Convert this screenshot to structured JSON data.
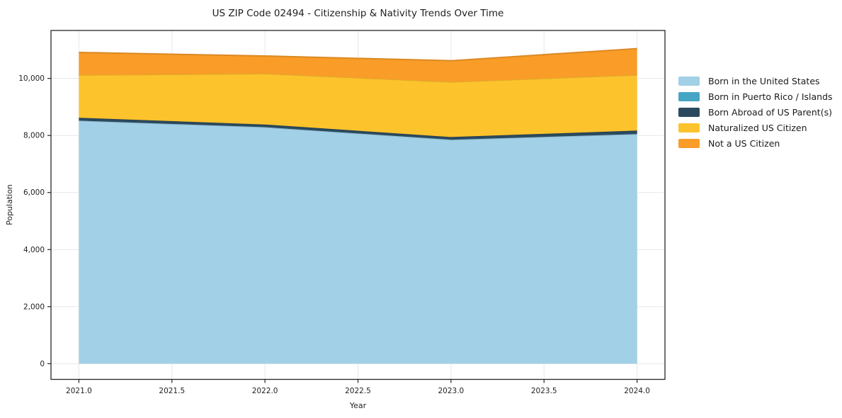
{
  "chart_data": {
    "type": "area",
    "stacked": true,
    "title": "US ZIP Code 02494 - Citizenship & Nativity Trends Over Time",
    "xlabel": "Year",
    "ylabel": "Population",
    "x": [
      2021,
      2022,
      2023,
      2024
    ],
    "series": [
      {
        "name": "Born in the United States",
        "color": "#A1D0E7",
        "values": [
          8520,
          8290,
          7850,
          8050
        ]
      },
      {
        "name": "Born in Puerto Rico / Islands",
        "color": "#46A5C4",
        "values": [
          0,
          0,
          0,
          0
        ]
      },
      {
        "name": "Born Abroad of US Parent(s)",
        "color": "#2B4A5E",
        "values": [
          100,
          95,
          95,
          120
        ]
      },
      {
        "name": "Naturalized US Citizen",
        "color": "#FDC32D",
        "values": [
          1500,
          1780,
          1930,
          1950
        ]
      },
      {
        "name": "Not a US Citizen",
        "color": "#F99C28",
        "values": [
          790,
          620,
          745,
          925
        ]
      }
    ],
    "totals": [
      10910,
      10785,
      10620,
      11045
    ],
    "xlim": [
      2020.85,
      2024.15
    ],
    "ylim": [
      -550,
      11680
    ],
    "xticks": {
      "values": [
        2021,
        2021.5,
        2022,
        2022.5,
        2023,
        2023.5,
        2024
      ],
      "labels": [
        "2021.0",
        "2021.5",
        "2022.0",
        "2022.5",
        "2023.0",
        "2023.5",
        "2024.0"
      ]
    },
    "yticks": {
      "values": [
        0,
        2000,
        4000,
        6000,
        8000,
        10000
      ],
      "labels": [
        "0",
        "2,000",
        "4,000",
        "6,000",
        "8,000",
        "10,000"
      ]
    },
    "grid": true,
    "legend_position": "right",
    "colors": {
      "spine": "#262626",
      "grid": "#e7e7e7",
      "tick_label": "#1f1f1f",
      "title_text": "#1a1a1a"
    }
  }
}
